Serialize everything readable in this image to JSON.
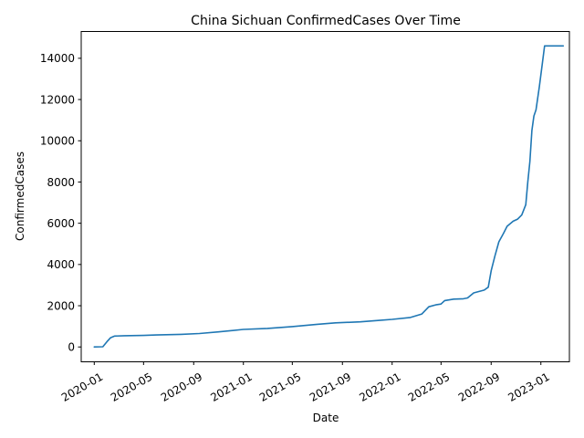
{
  "chart_data": {
    "type": "line",
    "title": "China Sichuan ConfirmedCases Over Time",
    "xlabel": "Date",
    "ylabel": "ConfirmedCases",
    "x_ticks": [
      "2020-01",
      "2020-05",
      "2020-09",
      "2021-01",
      "2021-05",
      "2021-09",
      "2022-01",
      "2022-05",
      "2022-09",
      "2023-01"
    ],
    "y_ticks": [
      0,
      2000,
      4000,
      6000,
      8000,
      10000,
      12000,
      14000
    ],
    "xlim": [
      "2019-11-30",
      "2023-03-12"
    ],
    "ylim": [
      -720,
      15300
    ],
    "grid": false,
    "legend": "none",
    "line_color": "#1f77b4",
    "series": [
      {
        "points": [
          [
            "2020-01-01",
            0
          ],
          [
            "2020-01-22",
            10
          ],
          [
            "2020-02-01",
            250
          ],
          [
            "2020-02-10",
            450
          ],
          [
            "2020-02-20",
            530
          ],
          [
            "2020-03-15",
            545
          ],
          [
            "2020-05-01",
            560
          ],
          [
            "2020-06-01",
            580
          ],
          [
            "2020-08-01",
            610
          ],
          [
            "2020-09-15",
            650
          ],
          [
            "2020-11-01",
            730
          ],
          [
            "2021-01-01",
            850
          ],
          [
            "2021-03-01",
            900
          ],
          [
            "2021-05-01",
            990
          ],
          [
            "2021-07-01",
            1100
          ],
          [
            "2021-08-15",
            1170
          ],
          [
            "2021-10-15",
            1220
          ],
          [
            "2021-12-01",
            1290
          ],
          [
            "2022-01-01",
            1340
          ],
          [
            "2022-02-15",
            1430
          ],
          [
            "2022-03-15",
            1600
          ],
          [
            "2022-04-01",
            1950
          ],
          [
            "2022-04-20",
            2050
          ],
          [
            "2022-05-01",
            2080
          ],
          [
            "2022-05-10",
            2250
          ],
          [
            "2022-06-01",
            2320
          ],
          [
            "2022-06-25",
            2340
          ],
          [
            "2022-07-05",
            2380
          ],
          [
            "2022-07-20",
            2620
          ],
          [
            "2022-08-15",
            2760
          ],
          [
            "2022-08-25",
            2900
          ],
          [
            "2022-09-01",
            3700
          ],
          [
            "2022-09-10",
            4400
          ],
          [
            "2022-09-20",
            5100
          ],
          [
            "2022-10-01",
            5500
          ],
          [
            "2022-10-10",
            5850
          ],
          [
            "2022-10-25",
            6100
          ],
          [
            "2022-11-05",
            6200
          ],
          [
            "2022-11-15",
            6400
          ],
          [
            "2022-11-25",
            6900
          ],
          [
            "2022-11-30",
            8000
          ],
          [
            "2022-12-05",
            9000
          ],
          [
            "2022-12-10",
            10500
          ],
          [
            "2022-12-15",
            11200
          ],
          [
            "2022-12-20",
            11500
          ],
          [
            "2022-12-28",
            12600
          ],
          [
            "2023-01-05",
            13800
          ],
          [
            "2023-01-10",
            14600
          ],
          [
            "2023-02-25",
            14600
          ]
        ]
      }
    ]
  }
}
